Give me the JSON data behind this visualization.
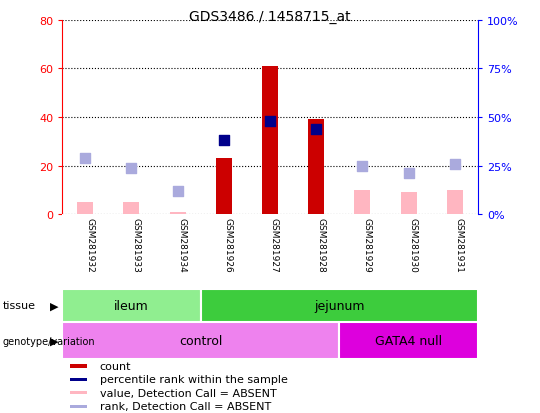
{
  "title": "GDS3486 / 1458715_at",
  "samples": [
    "GSM281932",
    "GSM281933",
    "GSM281934",
    "GSM281926",
    "GSM281927",
    "GSM281928",
    "GSM281929",
    "GSM281930",
    "GSM281931"
  ],
  "count_values": [
    null,
    null,
    null,
    23,
    61,
    39,
    null,
    null,
    null
  ],
  "count_absent_values": [
    5,
    5,
    1,
    null,
    null,
    null,
    10,
    9,
    10
  ],
  "percentile_rank": [
    null,
    null,
    null,
    38,
    48,
    44,
    null,
    null,
    null
  ],
  "rank_absent": [
    29,
    24,
    12,
    null,
    null,
    null,
    25,
    21,
    26
  ],
  "left_ylim": [
    0,
    80
  ],
  "right_ylim": [
    0,
    100
  ],
  "left_yticks": [
    0,
    20,
    40,
    60,
    80
  ],
  "right_yticks": [
    0,
    25,
    50,
    75,
    100
  ],
  "left_ytick_labels": [
    "0",
    "20",
    "40",
    "60",
    "80"
  ],
  "right_ytick_labels": [
    "0%",
    "25%",
    "50%",
    "75%",
    "100%"
  ],
  "tissue_groups": [
    {
      "label": "ileum",
      "start": 0,
      "end": 3,
      "color": "#90EE90"
    },
    {
      "label": "jejunum",
      "start": 3,
      "end": 9,
      "color": "#3DCC3D"
    }
  ],
  "genotype_groups": [
    {
      "label": "control",
      "start": 0,
      "end": 6,
      "color": "#EE82EE"
    },
    {
      "label": "GATA4 null",
      "start": 6,
      "end": 9,
      "color": "#DD00DD"
    }
  ],
  "bar_color_present": "#CC0000",
  "bar_color_absent": "#FFB6C1",
  "dot_color_present": "#00008B",
  "dot_color_absent": "#AAAADD",
  "legend_items": [
    {
      "label": "count",
      "color": "#CC0000"
    },
    {
      "label": "percentile rank within the sample",
      "color": "#00008B"
    },
    {
      "label": "value, Detection Call = ABSENT",
      "color": "#FFB6C1"
    },
    {
      "label": "rank, Detection Call = ABSENT",
      "color": "#AAAADD"
    }
  ],
  "sample_bg_color": "#C8C8C8",
  "plot_bg": "#FFFFFF"
}
